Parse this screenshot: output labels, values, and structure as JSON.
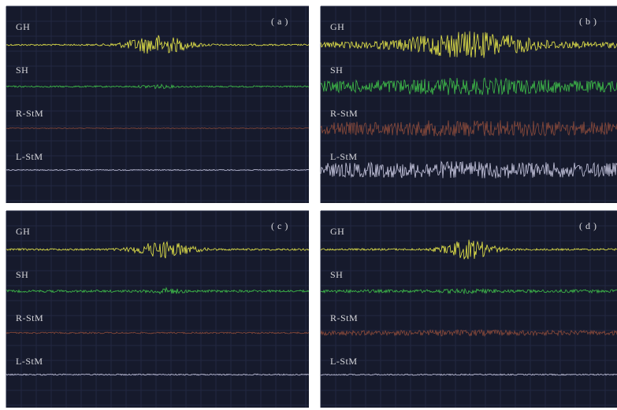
{
  "panels": [
    {
      "label": "( a )",
      "channels": [
        "GH",
        "SH",
        "R-StM",
        "L-StM"
      ]
    },
    {
      "label": "( b )",
      "channels": [
        "GH",
        "SH",
        "R-StM",
        "L-StM"
      ]
    },
    {
      "label": "( c )",
      "channels": [
        "GH",
        "SH",
        "R-StM",
        "L-StM"
      ]
    },
    {
      "label": "( d )",
      "channels": [
        "GH",
        "SH",
        "R-StM",
        "L-StM"
      ]
    }
  ]
}
